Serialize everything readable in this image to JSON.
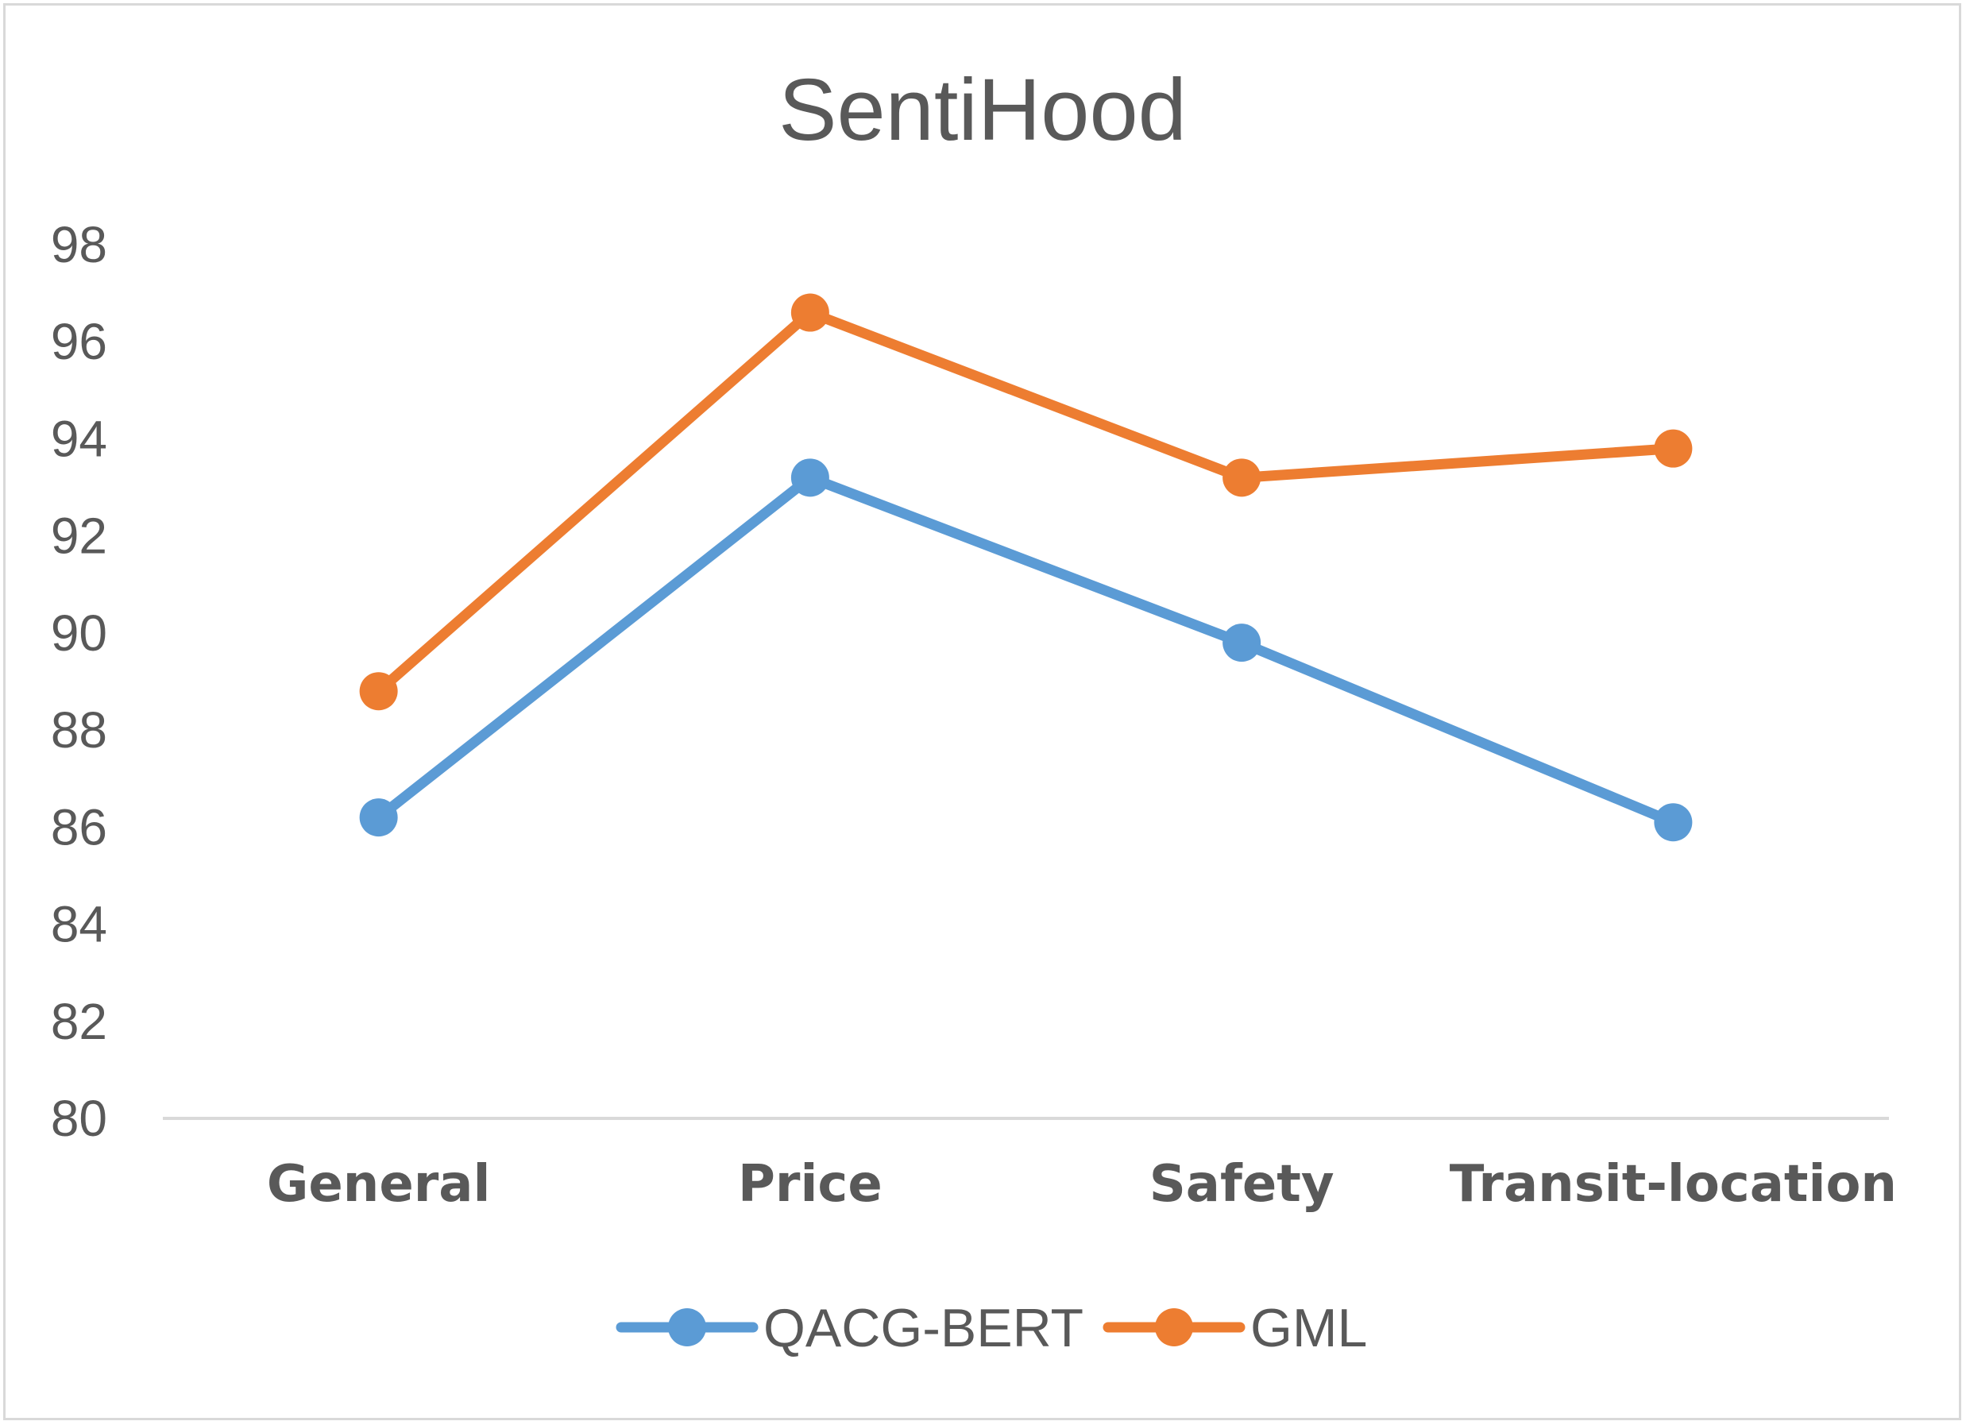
{
  "chart_data": {
    "type": "line",
    "title": "SentiHood",
    "xlabel": "",
    "ylabel": "",
    "categories": [
      "General",
      "Price",
      "Safety",
      "Transit-location"
    ],
    "ylim": [
      80,
      98
    ],
    "yticks": [
      80,
      82,
      84,
      86,
      88,
      90,
      92,
      94,
      96,
      98
    ],
    "grid": false,
    "legend_position": "bottom",
    "series": [
      {
        "name": "QACG-BERT",
        "color": "#5b9bd5",
        "values": [
          86.2,
          93.2,
          89.8,
          86.1
        ]
      },
      {
        "name": "GML",
        "color": "#ed7d31",
        "values": [
          88.8,
          96.6,
          93.2,
          93.8
        ]
      }
    ]
  }
}
